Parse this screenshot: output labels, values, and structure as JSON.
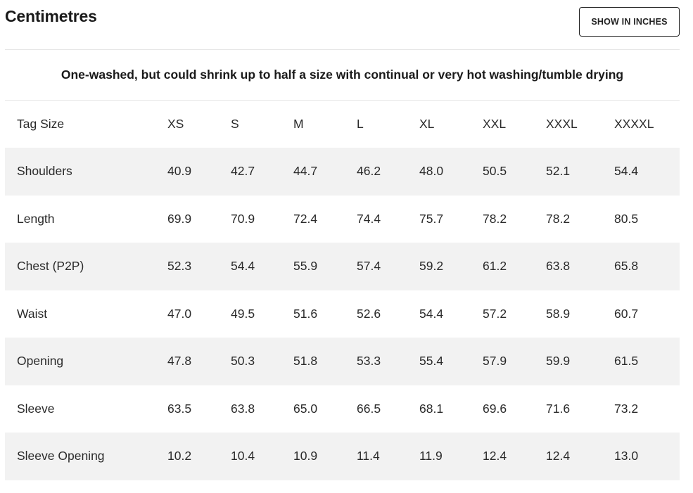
{
  "header": {
    "title": "Centimetres",
    "toggle_label": "SHOW IN INCHES"
  },
  "note": "One-washed, but could shrink up to half a size with continual or very hot washing/tumble drying",
  "table": {
    "header_label": "Tag Size",
    "sizes": [
      "XS",
      "S",
      "M",
      "L",
      "XL",
      "XXL",
      "XXXL",
      "XXXXL"
    ],
    "rows": [
      {
        "label": "Shoulders",
        "values": [
          "40.9",
          "42.7",
          "44.7",
          "46.2",
          "48.0",
          "50.5",
          "52.1",
          "54.4"
        ]
      },
      {
        "label": "Length",
        "values": [
          "69.9",
          "70.9",
          "72.4",
          "74.4",
          "75.7",
          "78.2",
          "78.2",
          "80.5"
        ]
      },
      {
        "label": "Chest (P2P)",
        "values": [
          "52.3",
          "54.4",
          "55.9",
          "57.4",
          "59.2",
          "61.2",
          "63.8",
          "65.8"
        ]
      },
      {
        "label": "Waist",
        "values": [
          "47.0",
          "49.5",
          "51.6",
          "52.6",
          "54.4",
          "57.2",
          "58.9",
          "60.7"
        ]
      },
      {
        "label": "Opening",
        "values": [
          "47.8",
          "50.3",
          "51.8",
          "53.3",
          "55.4",
          "57.9",
          "59.9",
          "61.5"
        ]
      },
      {
        "label": "Sleeve",
        "values": [
          "63.5",
          "63.8",
          "65.0",
          "66.5",
          "68.1",
          "69.6",
          "71.6",
          "73.2"
        ]
      },
      {
        "label": "Sleeve Opening",
        "values": [
          "10.2",
          "10.4",
          "10.9",
          "11.4",
          "11.9",
          "12.4",
          "12.4",
          "13.0"
        ]
      }
    ]
  },
  "colors": {
    "row_shade": "#f2f2f2",
    "divider": "#e6e6e6",
    "text": "#1a1a1a"
  }
}
